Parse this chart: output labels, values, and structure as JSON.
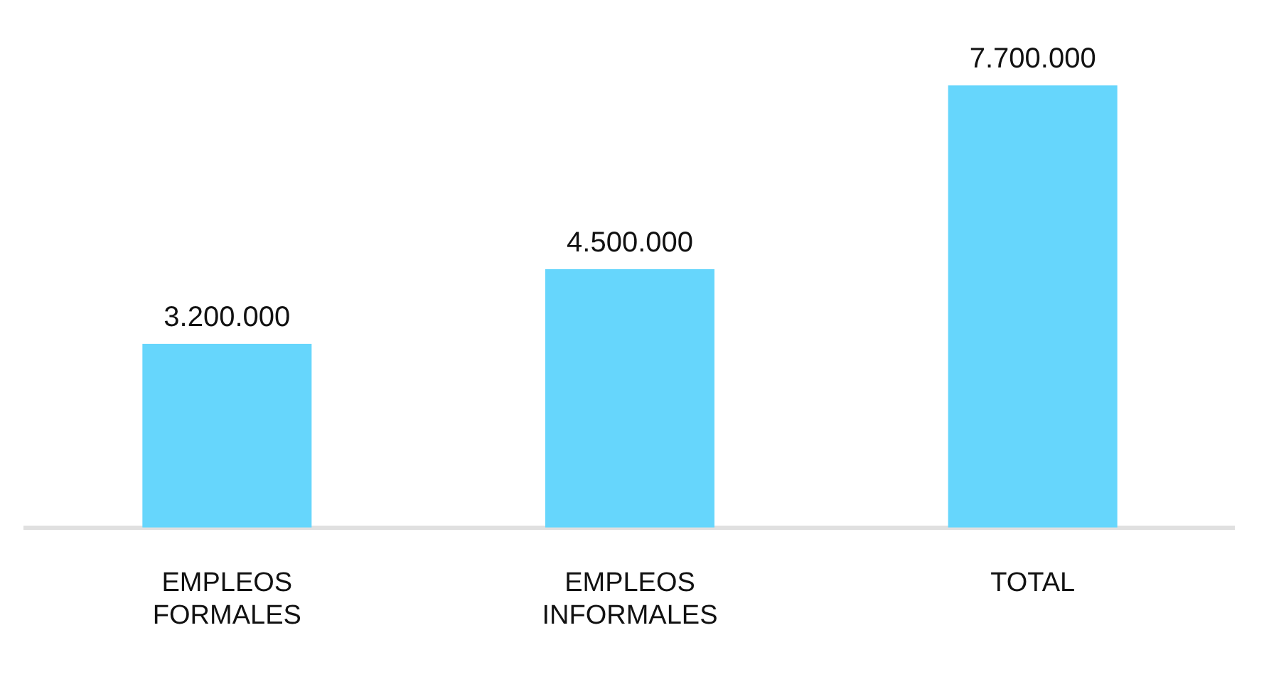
{
  "chart_data": {
    "type": "bar",
    "categories": [
      "EMPLEOS FORMALES",
      "EMPLEOS INFORMALES",
      "TOTAL"
    ],
    "values": [
      3200000,
      4500000,
      7700000
    ],
    "value_labels": [
      "3.200.000",
      "4.500.000",
      "7.700.000"
    ],
    "color": "#66d6fc",
    "grid": false,
    "legend": false
  }
}
